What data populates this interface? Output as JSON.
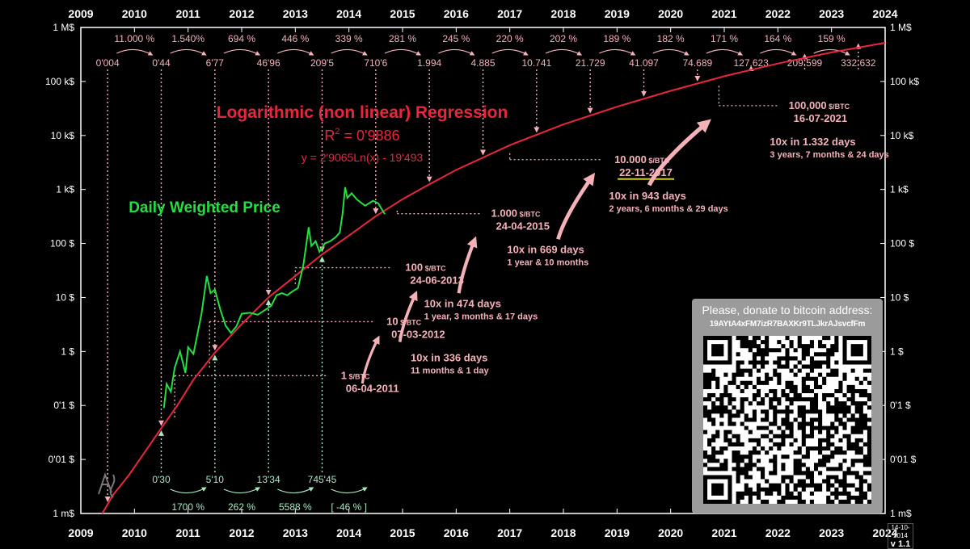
{
  "chart_data": {
    "type": "line",
    "title": "Logarithmic (non linear) Regression",
    "r2_label": "R",
    "r2_sup": "2",
    "r2_value": " = 0'9886",
    "formula": "y = 2'9065Ln(x) - 19'493",
    "price_label": "Daily Weighted Price",
    "x_ticks": [
      "2009",
      "2010",
      "2011",
      "2012",
      "2013",
      "2014",
      "2015",
      "2016",
      "2017",
      "2018",
      "2019",
      "2020",
      "2021",
      "2022",
      "2023",
      "2024"
    ],
    "y_ticks_left": [
      "1 M$",
      "100 k$",
      "10 k$",
      "1 k$",
      "100 $",
      "10 $",
      "1 $",
      "0'1 $",
      "0'01 $",
      "1 m$"
    ],
    "y_ticks_right": [
      "1 M$",
      "100 k$",
      "10 k$",
      "1 k$",
      "100 $",
      "10 $",
      "1 $",
      "0'1 $",
      "0'01 $",
      "1 m$"
    ],
    "ylim": [
      0.001,
      1000000
    ],
    "y_scale": "log",
    "xlim": [
      2009,
      2024
    ],
    "regression": {
      "name": "Logarithmic Regression",
      "color": "#e8263d",
      "points": [
        [
          2009.4,
          0.001
        ],
        [
          2009.6,
          0.0022
        ],
        [
          2009.9,
          0.0052
        ],
        [
          2010.2,
          0.014
        ],
        [
          2010.5,
          0.038
        ],
        [
          2010.8,
          0.1
        ],
        [
          2011.1,
          0.3
        ],
        [
          2011.5,
          0.95
        ],
        [
          2012.0,
          3.2
        ],
        [
          2012.5,
          10
        ],
        [
          2013.0,
          25
        ],
        [
          2013.5,
          63
        ],
        [
          2014.0,
          140
        ],
        [
          2014.5,
          320
        ],
        [
          2015.0,
          660
        ],
        [
          2015.5,
          1250
        ],
        [
          2016.0,
          2300
        ],
        [
          2017.0,
          6600
        ],
        [
          2018.0,
          16000
        ],
        [
          2019.0,
          34000
        ],
        [
          2020.0,
          67000
        ],
        [
          2021.0,
          125000
        ],
        [
          2022.0,
          215000
        ],
        [
          2023.0,
          345000
        ],
        [
          2024.0,
          520000
        ]
      ]
    },
    "price_series": {
      "name": "Daily Weighted Price",
      "color": "#22e040",
      "points": [
        [
          2010.55,
          0.09
        ],
        [
          2010.6,
          0.25
        ],
        [
          2010.68,
          0.18
        ],
        [
          2010.75,
          0.5
        ],
        [
          2010.85,
          1.0
        ],
        [
          2010.95,
          0.4
        ],
        [
          2011.0,
          1.2
        ],
        [
          2011.1,
          0.9
        ],
        [
          2011.25,
          5
        ],
        [
          2011.35,
          25
        ],
        [
          2011.42,
          12
        ],
        [
          2011.5,
          14
        ],
        [
          2011.6,
          6
        ],
        [
          2011.7,
          3
        ],
        [
          2011.8,
          2.2
        ],
        [
          2011.9,
          2.9
        ],
        [
          2012.0,
          5
        ],
        [
          2012.15,
          5.2
        ],
        [
          2012.3,
          4.8
        ],
        [
          2012.45,
          6
        ],
        [
          2012.55,
          7
        ],
        [
          2012.65,
          11
        ],
        [
          2012.75,
          12
        ],
        [
          2012.85,
          11
        ],
        [
          2012.95,
          13
        ],
        [
          2013.05,
          15
        ],
        [
          2013.15,
          40
        ],
        [
          2013.25,
          200
        ],
        [
          2013.3,
          90
        ],
        [
          2013.38,
          110
        ],
        [
          2013.45,
          70
        ],
        [
          2013.55,
          100
        ],
        [
          2013.65,
          110
        ],
        [
          2013.75,
          130
        ],
        [
          2013.83,
          160
        ],
        [
          2013.88,
          350
        ],
        [
          2013.93,
          1100
        ],
        [
          2013.97,
          700
        ],
        [
          2014.05,
          850
        ],
        [
          2014.15,
          650
        ],
        [
          2014.3,
          500
        ],
        [
          2014.45,
          620
        ],
        [
          2014.55,
          550
        ],
        [
          2014.6,
          450
        ],
        [
          2014.67,
          350
        ]
      ]
    },
    "top_values": [
      {
        "x": 2009.5,
        "label": "0'004"
      },
      {
        "x": 2010.5,
        "label": "0'44"
      },
      {
        "x": 2011.5,
        "label": "6'77"
      },
      {
        "x": 2012.5,
        "label": "46'96"
      },
      {
        "x": 2013.5,
        "label": "209'5"
      },
      {
        "x": 2014.5,
        "label": "710'6"
      },
      {
        "x": 2015.5,
        "label": "1.994"
      },
      {
        "x": 2016.5,
        "label": "4.885"
      },
      {
        "x": 2017.5,
        "label": "10.741"
      },
      {
        "x": 2018.5,
        "label": "21.729"
      },
      {
        "x": 2019.5,
        "label": "41.097"
      },
      {
        "x": 2020.5,
        "label": "74.689"
      },
      {
        "x": 2021.5,
        "label": "127.623"
      },
      {
        "x": 2022.5,
        "label": "209.599"
      },
      {
        "x": 2023.5,
        "label": "332.632"
      }
    ],
    "top_growth": [
      {
        "x": 2010.0,
        "label": "11.000 %"
      },
      {
        "x": 2011.0,
        "label": "1.540%"
      },
      {
        "x": 2012.0,
        "label": "694 %"
      },
      {
        "x": 2013.0,
        "label": "446 %"
      },
      {
        "x": 2014.0,
        "label": "339 %"
      },
      {
        "x": 2015.0,
        "label": "281 %"
      },
      {
        "x": 2016.0,
        "label": "245 %"
      },
      {
        "x": 2017.0,
        "label": "220 %"
      },
      {
        "x": 2018.0,
        "label": "202 %"
      },
      {
        "x": 2019.0,
        "label": "189 %"
      },
      {
        "x": 2020.0,
        "label": "182 %"
      },
      {
        "x": 2021.0,
        "label": "171 %"
      },
      {
        "x": 2022.0,
        "label": "164 %"
      },
      {
        "x": 2023.0,
        "label": "159 %"
      }
    ],
    "bottom_values": [
      {
        "x": 2010.5,
        "label": "0'30"
      },
      {
        "x": 2011.5,
        "label": "5'10"
      },
      {
        "x": 2012.5,
        "label": "13'34"
      },
      {
        "x": 2013.5,
        "label": "745'45"
      }
    ],
    "bottom_growth": [
      {
        "x": 2011.0,
        "label": "1700 %"
      },
      {
        "x": 2012.0,
        "label": "262 %"
      },
      {
        "x": 2013.0,
        "label": "5588 %"
      },
      {
        "x": 2014.0,
        "label": "[ -46 % ]"
      }
    ],
    "milestones": [
      {
        "price": 1,
        "price_label": "1",
        "unit": " $/BTC",
        "date": "06-04-2011",
        "from_x": 2010.75,
        "to_x": 2013.6,
        "label_x": 2013.7
      },
      {
        "price": 10,
        "price_label": "10",
        "unit": " $/BTC",
        "date": "07-03-2012",
        "from_x": 2011.4,
        "to_x": 2014.45,
        "label_x": 2014.55
      },
      {
        "price": 100,
        "price_label": "100",
        "unit": " $/BTC",
        "date": "24-06-2013",
        "from_x": 2013.0,
        "to_x": 2014.8,
        "label_x": 2014.9
      },
      {
        "price": 1000,
        "price_label": "1.000",
        "unit": " $/BTC",
        "date": "24-04-2015",
        "from_x": 2014.9,
        "to_x": 2016.45,
        "label_x": 2016.5
      },
      {
        "price": 10000,
        "price_label": "10.000",
        "unit": " $/BTC",
        "date": "22-11-2017",
        "from_x": 2017.0,
        "to_x": 2018.7,
        "label_x": 2018.8
      },
      {
        "price": 100000,
        "price_label": "100,000",
        "unit": " $/BTC",
        "date": "16-07-2021",
        "from_x": 2020.9,
        "to_x": 2022.0,
        "label_x": 2022.05
      }
    ],
    "intervals": [
      {
        "x": 2015.0,
        "price": 2.2,
        "title": "10x in 336 days",
        "detail": "11 months & 1 day"
      },
      {
        "x": 2015.25,
        "price": 22,
        "title": "10x in 474 days",
        "detail": "1 year, 3 months & 17 days"
      },
      {
        "x": 2016.8,
        "price": 220,
        "title": "10x in 669 days",
        "detail": "1 year & 10 months"
      },
      {
        "x": 2018.7,
        "price": 2200,
        "title": "10x in 943 days",
        "detail": "2 years, 6 months & 29 days"
      },
      {
        "x": 2021.7,
        "price": 22000,
        "title": "10x  in 1.332 days",
        "detail": "3 years, 7 months & 24 days"
      }
    ],
    "grid": false,
    "legend": "none"
  },
  "donate": {
    "title": "Please, donate to bitcoin address:",
    "address": "19AYtA4xFM7izR7BAXKr9TLJkrAJsvcfFm"
  },
  "version": {
    "date": "14-10-2014",
    "label": "v 1.1"
  },
  "colors": {
    "regression": "#e8263d",
    "price": "#22e040",
    "pink": "#f4b1b8",
    "green_labels": "#a8e8c0",
    "highlight": "#d8d000"
  }
}
